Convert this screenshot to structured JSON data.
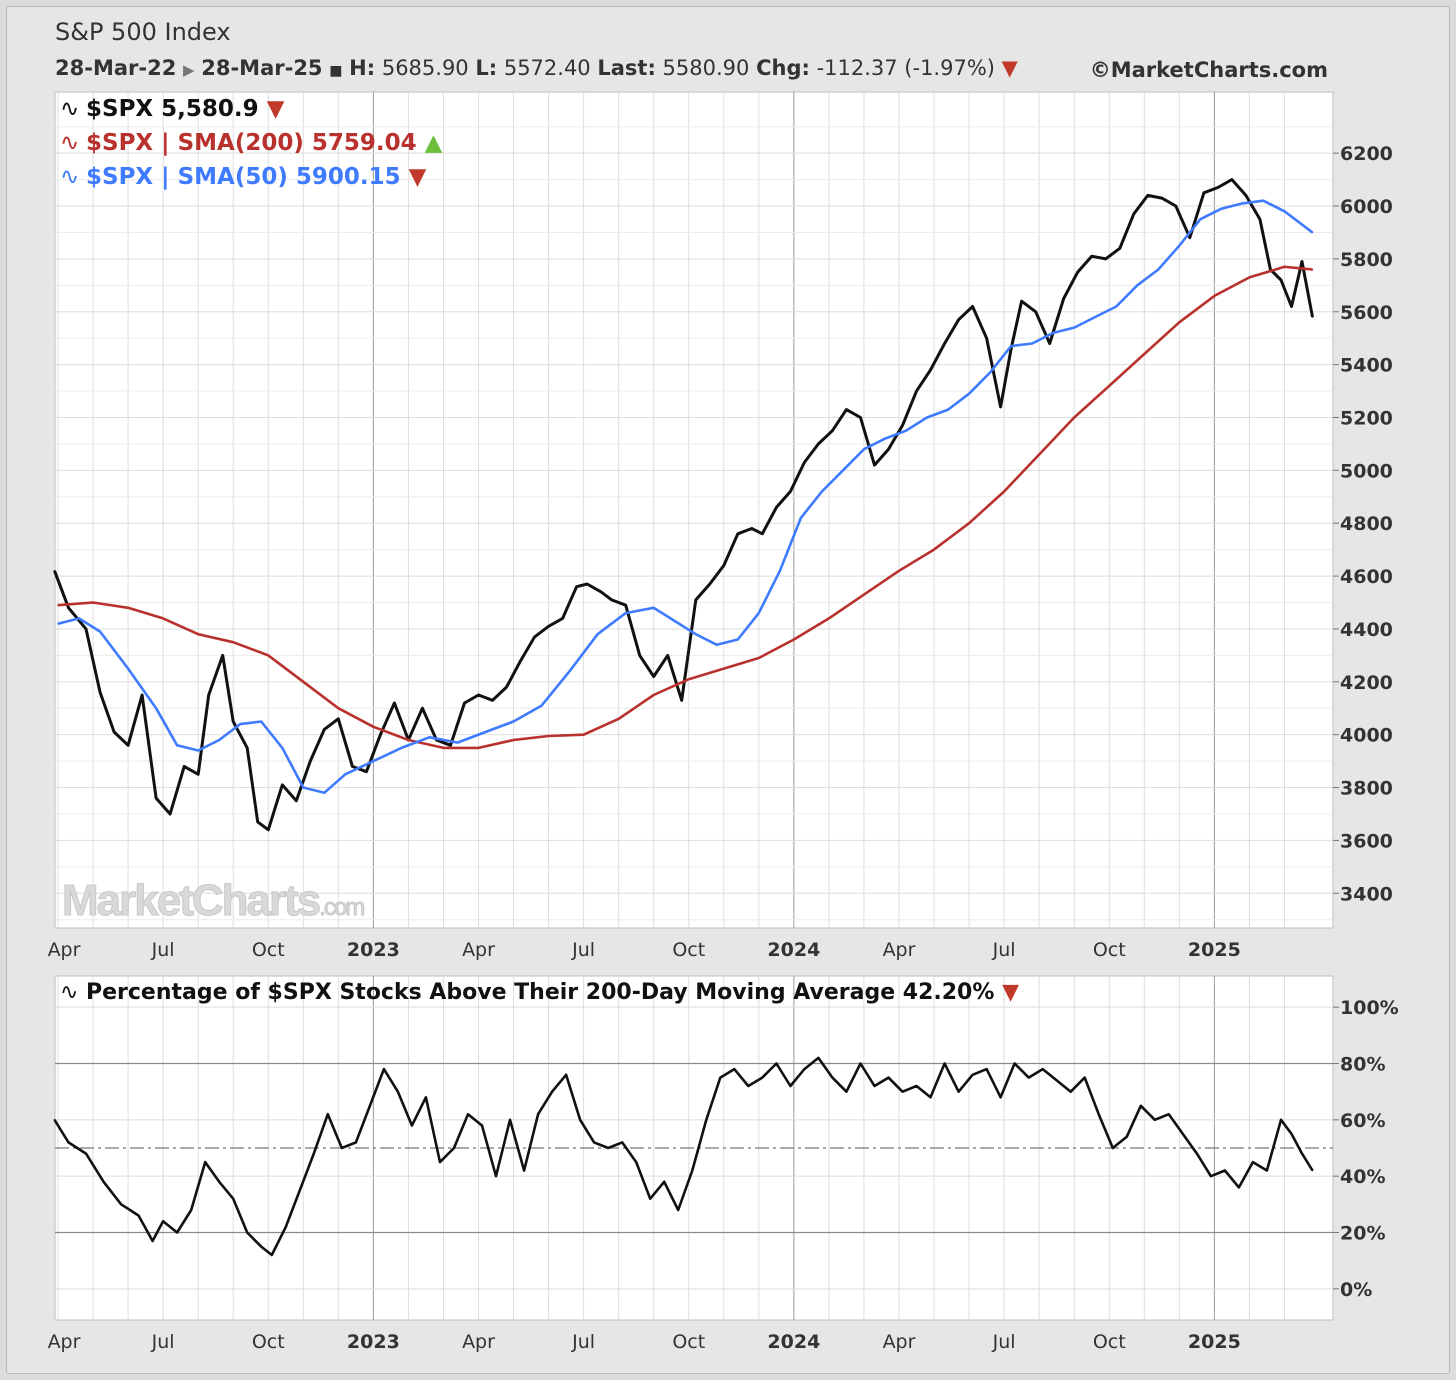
{
  "header": {
    "title": "S&P 500 Index",
    "start_date": "28-Mar-22",
    "end_date": "28-Mar-25",
    "h_label": "H:",
    "h_value": "5685.90",
    "l_label": "L:",
    "l_value": "5572.40",
    "last_label": "Last:",
    "last_value": "5580.90",
    "chg_label": "Chg:",
    "chg_value": "-112.37 (-1.97%)",
    "copyright": "©MarketCharts.com"
  },
  "colors": {
    "price": "#111111",
    "sma200": "#b8312c",
    "sma50": "#3f7bff",
    "down": "#c0392b",
    "up": "#6bbf3a",
    "panel_bg": "#ffffff",
    "grid": "#d8d8d8"
  },
  "watermark": "MarketCharts.com",
  "chart_data": [
    {
      "type": "line",
      "title": "S&P 500 Index",
      "legend": [
        {
          "label": "$SPX 5,580.9",
          "color": "#111111",
          "direction": "down"
        },
        {
          "label": "$SPX | SMA(200) 5759.04",
          "color": "#b8312c",
          "direction": "up"
        },
        {
          "label": "$SPX | SMA(50) 5900.15",
          "color": "#3f7bff",
          "direction": "down"
        }
      ],
      "x_tick_labels": [
        "Apr",
        "Jul",
        "Oct",
        "2023",
        "Apr",
        "Jul",
        "Oct",
        "2024",
        "Apr",
        "Jul",
        "Oct",
        "2025"
      ],
      "x_tick_positions_months": [
        0,
        3,
        6,
        9,
        12,
        15,
        18,
        21,
        24,
        27,
        30,
        33
      ],
      "x_range_months": [
        0,
        35.9
      ],
      "y_ticks": [
        3400,
        3600,
        3800,
        4000,
        4200,
        4400,
        4600,
        4800,
        5000,
        5200,
        5400,
        5600,
        5800,
        6000,
        6200
      ],
      "ylim": [
        3280,
        6420
      ],
      "series": [
        {
          "name": "$SPX",
          "x": [
            -0.1,
            0.3,
            0.8,
            1.2,
            1.6,
            2.0,
            2.4,
            2.8,
            3.2,
            3.6,
            4.0,
            4.3,
            4.7,
            5.0,
            5.4,
            5.7,
            6.0,
            6.4,
            6.8,
            7.2,
            7.6,
            8.0,
            8.4,
            8.8,
            9.2,
            9.6,
            10.0,
            10.4,
            10.8,
            11.2,
            11.6,
            12.0,
            12.4,
            12.8,
            13.2,
            13.6,
            14.0,
            14.4,
            14.8,
            15.1,
            15.5,
            15.8,
            16.2,
            16.6,
            17.0,
            17.4,
            17.8,
            18.2,
            18.6,
            19.0,
            19.4,
            19.8,
            20.1,
            20.5,
            20.9,
            21.3,
            21.7,
            22.1,
            22.5,
            22.9,
            23.3,
            23.7,
            24.1,
            24.5,
            24.9,
            25.3,
            25.7,
            26.1,
            26.5,
            26.9,
            27.2,
            27.5,
            27.9,
            28.3,
            28.7,
            29.1,
            29.5,
            29.9,
            30.3,
            30.7,
            31.1,
            31.5,
            31.9,
            32.3,
            32.7,
            33.1,
            33.5,
            33.9,
            34.3,
            34.6,
            34.9,
            35.2,
            35.5,
            35.8
          ],
          "values": [
            4620,
            4480,
            4400,
            4160,
            4010,
            3960,
            4150,
            3760,
            3700,
            3880,
            3850,
            4150,
            4300,
            4050,
            3950,
            3670,
            3640,
            3810,
            3750,
            3900,
            4020,
            4060,
            3880,
            3860,
            4000,
            4120,
            3980,
            4100,
            3980,
            3960,
            4120,
            4150,
            4130,
            4180,
            4280,
            4370,
            4410,
            4440,
            4560,
            4570,
            4540,
            4510,
            4490,
            4300,
            4220,
            4300,
            4130,
            4510,
            4570,
            4640,
            4760,
            4780,
            4760,
            4860,
            4920,
            5030,
            5100,
            5150,
            5230,
            5200,
            5020,
            5080,
            5170,
            5300,
            5380,
            5480,
            5570,
            5620,
            5500,
            5240,
            5460,
            5640,
            5600,
            5480,
            5650,
            5750,
            5810,
            5800,
            5840,
            5970,
            6040,
            6030,
            6000,
            5880,
            6050,
            6070,
            6100,
            6040,
            5950,
            5760,
            5720,
            5620,
            5790,
            5580
          ]
        },
        {
          "name": "SMA(200)",
          "x": [
            0.0,
            1.0,
            2.0,
            3.0,
            4.0,
            5.0,
            6.0,
            7.0,
            8.0,
            9.0,
            10.0,
            11.0,
            12.0,
            13.0,
            14.0,
            15.0,
            16.0,
            17.0,
            18.0,
            19.0,
            20.0,
            21.0,
            22.0,
            23.0,
            24.0,
            25.0,
            26.0,
            27.0,
            28.0,
            29.0,
            30.0,
            31.0,
            32.0,
            33.0,
            34.0,
            35.0,
            35.8
          ],
          "values": [
            4490,
            4500,
            4480,
            4440,
            4380,
            4350,
            4300,
            4200,
            4100,
            4030,
            3980,
            3950,
            3950,
            3980,
            3995,
            4000,
            4060,
            4150,
            4210,
            4250,
            4290,
            4360,
            4440,
            4530,
            4620,
            4700,
            4800,
            4920,
            5060,
            5200,
            5320,
            5440,
            5560,
            5660,
            5730,
            5770,
            5760
          ]
        },
        {
          "name": "SMA(50)",
          "x": [
            0.0,
            0.6,
            1.2,
            2.0,
            2.8,
            3.4,
            4.0,
            4.6,
            5.2,
            5.8,
            6.4,
            7.0,
            7.6,
            8.2,
            9.0,
            9.8,
            10.6,
            11.4,
            12.2,
            13.0,
            13.8,
            14.6,
            15.4,
            16.2,
            17.0,
            17.6,
            18.2,
            18.8,
            19.4,
            20.0,
            20.6,
            21.2,
            21.8,
            22.4,
            23.0,
            23.6,
            24.2,
            24.8,
            25.4,
            26.0,
            26.6,
            27.2,
            27.8,
            28.4,
            29.0,
            29.6,
            30.2,
            30.8,
            31.4,
            32.0,
            32.6,
            33.2,
            33.8,
            34.4,
            35.0,
            35.8
          ],
          "values": [
            4420,
            4440,
            4390,
            4250,
            4100,
            3960,
            3940,
            3980,
            4040,
            4050,
            3950,
            3800,
            3780,
            3850,
            3900,
            3950,
            3990,
            3970,
            4010,
            4050,
            4110,
            4240,
            4380,
            4460,
            4480,
            4430,
            4380,
            4340,
            4360,
            4460,
            4620,
            4820,
            4920,
            5000,
            5080,
            5120,
            5150,
            5200,
            5230,
            5290,
            5370,
            5470,
            5480,
            5520,
            5540,
            5580,
            5620,
            5700,
            5760,
            5850,
            5950,
            5990,
            6010,
            6020,
            5980,
            5900
          ]
        }
      ]
    },
    {
      "type": "line",
      "title": "Percentage of $SPX Stocks Above Their 200-Day Moving Average 42.20%",
      "legend": [
        {
          "label": "Percentage of $SPX Stocks Above Their 200-Day Moving Average 42.20%",
          "color": "#111111",
          "direction": "down"
        }
      ],
      "x_tick_labels": [
        "Apr",
        "Jul",
        "Oct",
        "2023",
        "Apr",
        "Jul",
        "Oct",
        "2024",
        "Apr",
        "Jul",
        "Oct",
        "2025"
      ],
      "x_tick_positions_months": [
        0,
        3,
        6,
        9,
        12,
        15,
        18,
        21,
        24,
        27,
        30,
        33
      ],
      "x_range_months": [
        0,
        35.9
      ],
      "y_ticks": [
        "100%",
        "80%",
        "60%",
        "40%",
        "20%",
        "0%"
      ],
      "y_tick_values": [
        100,
        80,
        60,
        40,
        20,
        0
      ],
      "ylim": [
        -10,
        110
      ],
      "reference_lines": [
        80,
        50,
        20
      ],
      "series": [
        {
          "name": "Percentage Above 200-DMA",
          "x": [
            -0.1,
            0.3,
            0.8,
            1.3,
            1.8,
            2.3,
            2.7,
            3.0,
            3.4,
            3.8,
            4.2,
            4.6,
            5.0,
            5.4,
            5.8,
            6.1,
            6.5,
            6.9,
            7.3,
            7.7,
            8.1,
            8.5,
            8.9,
            9.3,
            9.7,
            10.1,
            10.5,
            10.9,
            11.3,
            11.7,
            12.1,
            12.5,
            12.9,
            13.3,
            13.7,
            14.1,
            14.5,
            14.9,
            15.3,
            15.7,
            16.1,
            16.5,
            16.9,
            17.3,
            17.7,
            18.1,
            18.5,
            18.9,
            19.3,
            19.7,
            20.1,
            20.5,
            20.9,
            21.3,
            21.7,
            22.1,
            22.5,
            22.9,
            23.3,
            23.7,
            24.1,
            24.5,
            24.9,
            25.3,
            25.7,
            26.1,
            26.5,
            26.9,
            27.3,
            27.7,
            28.1,
            28.5,
            28.9,
            29.3,
            29.7,
            30.1,
            30.5,
            30.9,
            31.3,
            31.7,
            32.1,
            32.5,
            32.9,
            33.3,
            33.7,
            34.1,
            34.5,
            34.9,
            35.2,
            35.5,
            35.8
          ],
          "values": [
            60,
            52,
            48,
            38,
            30,
            26,
            17,
            24,
            20,
            28,
            45,
            38,
            32,
            20,
            15,
            12,
            22,
            35,
            48,
            62,
            50,
            52,
            65,
            78,
            70,
            58,
            68,
            45,
            50,
            62,
            58,
            40,
            60,
            42,
            62,
            70,
            76,
            60,
            52,
            50,
            52,
            45,
            32,
            38,
            28,
            42,
            60,
            75,
            78,
            72,
            75,
            80,
            72,
            78,
            82,
            75,
            70,
            80,
            72,
            75,
            70,
            72,
            68,
            80,
            70,
            76,
            78,
            68,
            80,
            75,
            78,
            74,
            70,
            75,
            62,
            50,
            54,
            65,
            60,
            62,
            55,
            48,
            40,
            42,
            36,
            45,
            42,
            60,
            55,
            48,
            42
          ]
        }
      ]
    }
  ]
}
